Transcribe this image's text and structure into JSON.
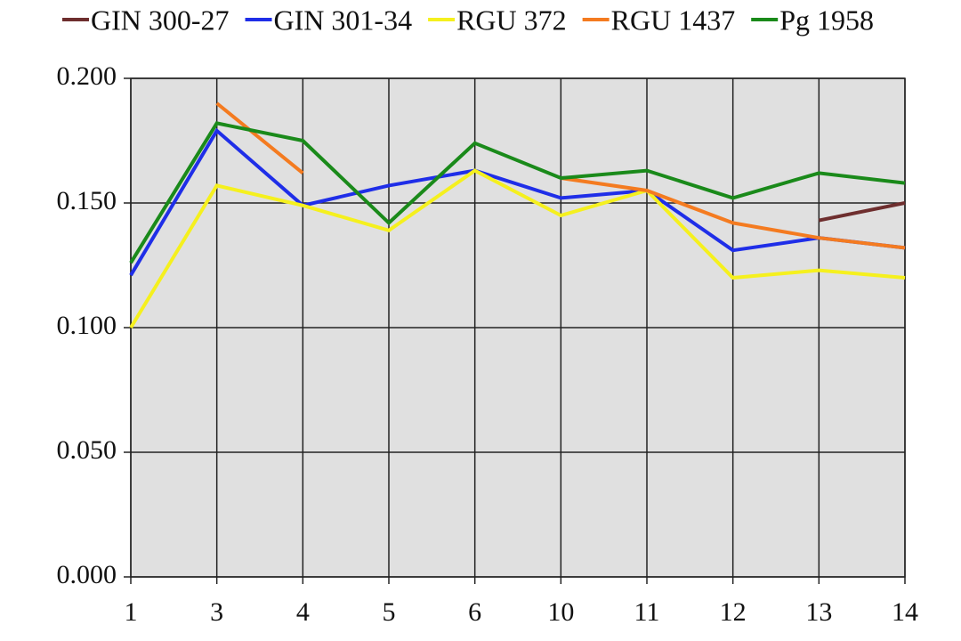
{
  "chart_data": {
    "type": "line",
    "categories": [
      "1",
      "3",
      "4",
      "5",
      "6",
      "10",
      "11",
      "12",
      "13",
      "14"
    ],
    "series": [
      {
        "name": "GIN 300-27",
        "color": "#6e2e2e",
        "values": [
          null,
          null,
          null,
          null,
          null,
          null,
          null,
          null,
          0.143,
          0.15
        ]
      },
      {
        "name": "GIN 301-34",
        "color": "#1f2ee8",
        "values": [
          0.121,
          0.179,
          0.149,
          0.157,
          0.163,
          0.152,
          0.155,
          0.131,
          0.136,
          0.132
        ]
      },
      {
        "name": "RGU 372",
        "color": "#f5f01e",
        "values": [
          0.1,
          0.157,
          0.149,
          0.139,
          0.163,
          0.145,
          0.155,
          0.12,
          0.123,
          0.12
        ]
      },
      {
        "name": "RGU 1437",
        "color": "#f47b20",
        "values": [
          null,
          0.19,
          0.162,
          null,
          null,
          0.16,
          0.155,
          0.142,
          0.136,
          0.132
        ]
      },
      {
        "name": "Pg 1958",
        "color": "#1a8a1a",
        "values": [
          0.126,
          0.182,
          0.175,
          0.142,
          0.174,
          0.16,
          0.163,
          0.152,
          0.162,
          0.158
        ]
      }
    ],
    "ylim": [
      0,
      0.2
    ],
    "yticks": [
      {
        "value": 0,
        "label": "0.000"
      },
      {
        "value": 0.05,
        "label": "0.050"
      },
      {
        "value": 0.1,
        "label": "0.100"
      },
      {
        "value": 0.15,
        "label": "0.150"
      },
      {
        "value": 0.2,
        "label": "0.200"
      }
    ],
    "grid": true,
    "legend": "top"
  }
}
